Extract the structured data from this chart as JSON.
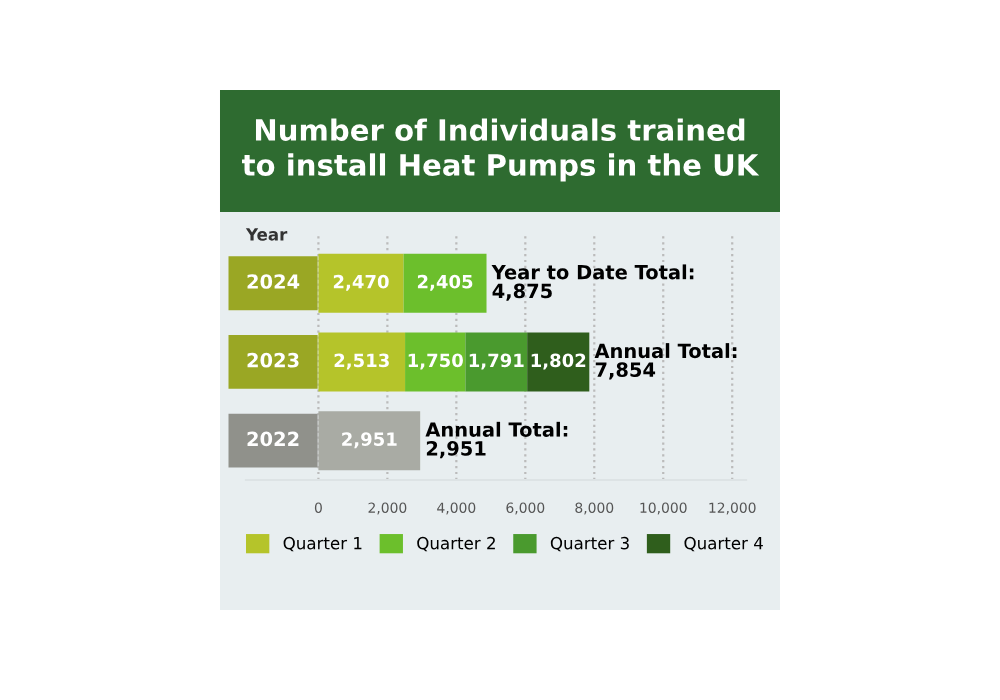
{
  "chart_data": {
    "type": "bar",
    "orientation": "horizontal",
    "stacked": true,
    "title": "Number of Individuals trained\nto install Heat Pumps in the UK",
    "ylabel": "Year",
    "categories": [
      "2024",
      "2023",
      "2022"
    ],
    "series": [
      {
        "name": "Quarter 1",
        "color": "#b5c42a",
        "colors": [
          "#b5c42a",
          "#b5c42a",
          "#a9aba4"
        ],
        "values": [
          2470,
          2513,
          2951
        ],
        "value_labels": [
          "2,470",
          "2,513",
          "2,951"
        ]
      },
      {
        "name": "Quarter 2",
        "color": "#6cbf2c",
        "values": [
          2405,
          1750,
          null
        ],
        "value_labels": [
          "2,405",
          "1,750",
          null
        ]
      },
      {
        "name": "Quarter 3",
        "color": "#4a9a2e",
        "values": [
          null,
          1791,
          null
        ],
        "value_labels": [
          null,
          "1,791",
          null
        ]
      },
      {
        "name": "Quarter 4",
        "color": "#2f5e1c",
        "values": [
          null,
          1802,
          null
        ],
        "value_labels": [
          null,
          "1,802",
          null
        ]
      }
    ],
    "totals": [
      "Year to Date Total:\n4,875",
      "Annual Total:\n7,854",
      "Annual Total:\n2,951"
    ],
    "xlim": [
      -2100,
      12400
    ],
    "xticks": [
      0,
      {
        "value": 2000,
        "label": "2,000"
      },
      {
        "value": 4000,
        "label": "4,000"
      },
      {
        "value": 6000,
        "label": "6,000"
      },
      {
        "value": 8000,
        "label": "8,000"
      },
      {
        "value": 10000,
        "label": "10,000"
      },
      {
        "value": 12000,
        "label": "12,000"
      }
    ],
    "grid": "x",
    "legend": "bottom"
  }
}
